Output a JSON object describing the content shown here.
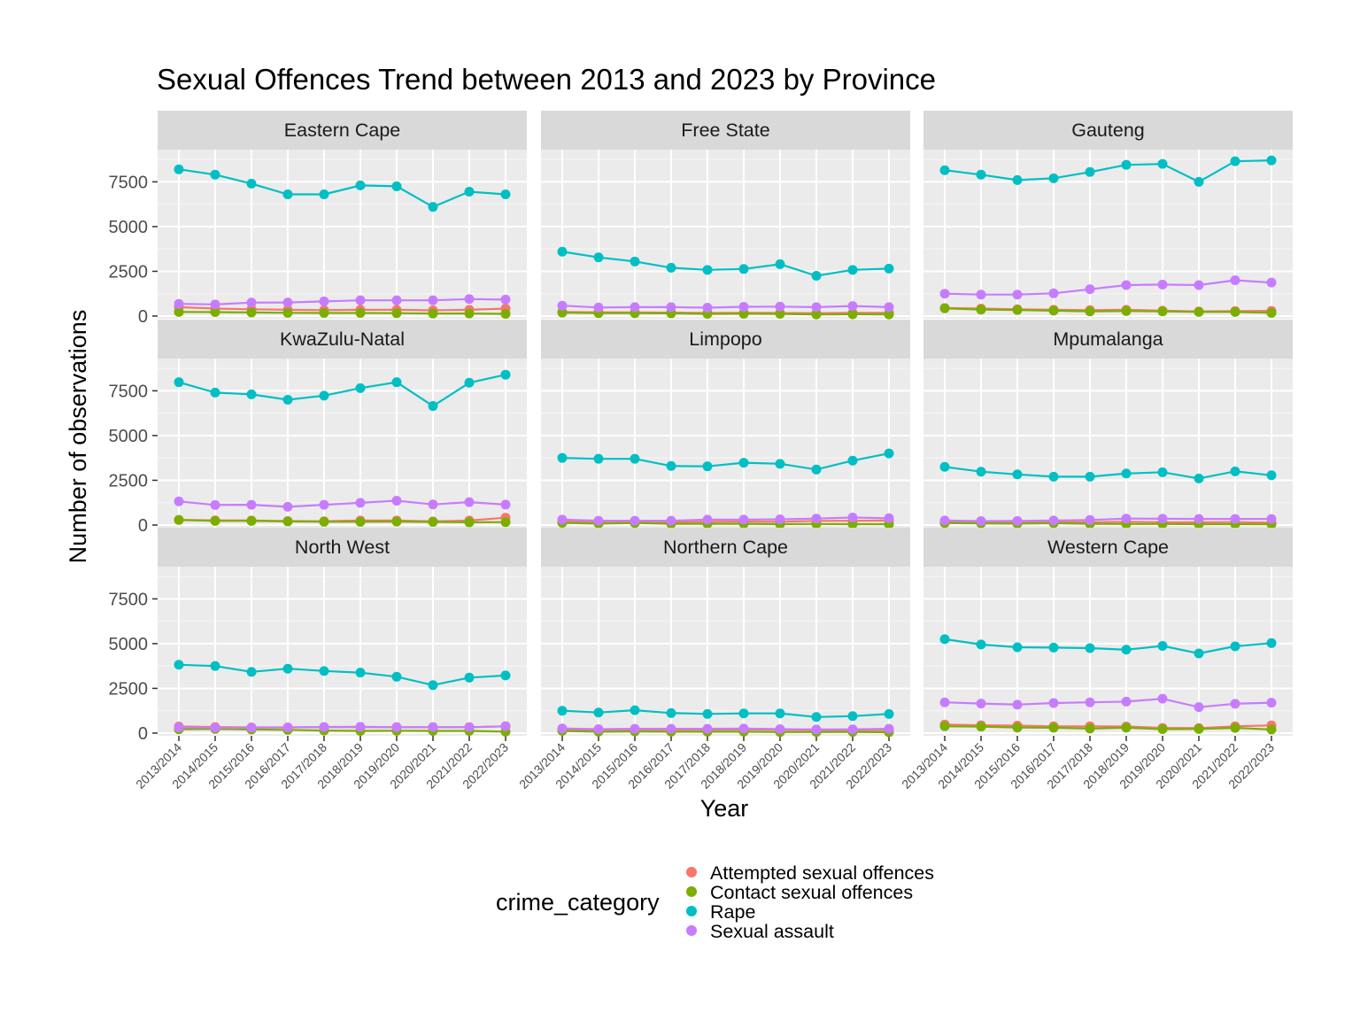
{
  "chart_data": {
    "type": "line",
    "title": "Sexual Offences Trend between 2013 and 2023 by Province",
    "xlabel": "Year",
    "ylabel": "Number of observations",
    "ylim": [
      -150,
      9300
    ],
    "yticks": [
      0,
      2500,
      5000,
      7500
    ],
    "ytick_labels": [
      "0",
      "2500",
      "5000",
      "7500"
    ],
    "grid": true,
    "legend_position": "bottom",
    "legend_title": "crime_category",
    "x": [
      "2013/2014",
      "2014/2015",
      "2015/2016",
      "2016/2017",
      "2017/2018",
      "2018/2019",
      "2019/2020",
      "2020/2021",
      "2021/2022",
      "2022/2023"
    ],
    "series_meta": [
      {
        "name": "Attempted sexual offences",
        "color": "#F8766D"
      },
      {
        "name": "Contact sexual offences",
        "color": "#7CAE00"
      },
      {
        "name": "Rape",
        "color": "#00BFC4"
      },
      {
        "name": "Sexual assault",
        "color": "#C77CFF"
      }
    ],
    "facets": [
      {
        "name": "Eastern Cape",
        "series": [
          {
            "name": "Attempted sexual offences",
            "values": [
              500,
              420,
              380,
              350,
              330,
              350,
              350,
              320,
              350,
              420
            ]
          },
          {
            "name": "Contact sexual offences",
            "values": [
              230,
              220,
              200,
              180,
              170,
              170,
              160,
              140,
              140,
              120
            ]
          },
          {
            "name": "Rape",
            "values": [
              8200,
              7900,
              7400,
              6800,
              6800,
              7300,
              7250,
              6100,
              6950,
              6800
            ]
          },
          {
            "name": "Sexual assault",
            "values": [
              680,
              650,
              750,
              760,
              820,
              880,
              880,
              880,
              950,
              920
            ]
          }
        ]
      },
      {
        "name": "Free State",
        "series": [
          {
            "name": "Attempted sexual offences",
            "values": [
              230,
              210,
              200,
              190,
              170,
              180,
              170,
              160,
              180,
              180
            ]
          },
          {
            "name": "Contact sexual offences",
            "values": [
              190,
              160,
              160,
              150,
              120,
              130,
              120,
              90,
              100,
              90
            ]
          },
          {
            "name": "Rape",
            "values": [
              3600,
              3280,
              3050,
              2700,
              2580,
              2630,
              2900,
              2250,
              2580,
              2650
            ]
          },
          {
            "name": "Sexual assault",
            "values": [
              580,
              480,
              500,
              500,
              470,
              520,
              530,
              500,
              560,
              500
            ]
          }
        ]
      },
      {
        "name": "Gauteng",
        "series": [
          {
            "name": "Attempted sexual offences",
            "values": [
              450,
              420,
              380,
              350,
              330,
              350,
              300,
              260,
              280,
              290
            ]
          },
          {
            "name": "Contact sexual offences",
            "values": [
              430,
              360,
              340,
              300,
              260,
              280,
              260,
              230,
              230,
              180
            ]
          },
          {
            "name": "Rape",
            "values": [
              8150,
              7900,
              7600,
              7700,
              8050,
              8450,
              8500,
              7500,
              8650,
              8700
            ]
          },
          {
            "name": "Sexual assault",
            "values": [
              1250,
              1200,
              1200,
              1270,
              1500,
              1730,
              1760,
              1730,
              2000,
              1870
            ]
          }
        ]
      },
      {
        "name": "KwaZulu-Natal",
        "series": [
          {
            "name": "Attempted sexual offences",
            "values": [
              290,
              260,
              250,
              220,
              210,
              250,
              250,
              200,
              250,
              410
            ]
          },
          {
            "name": "Contact sexual offences",
            "values": [
              280,
              230,
              230,
              200,
              180,
              180,
              190,
              170,
              150,
              160
            ]
          },
          {
            "name": "Rape",
            "values": [
              7980,
              7400,
              7300,
              7000,
              7230,
              7650,
              7980,
              6650,
              7950,
              8400
            ]
          },
          {
            "name": "Sexual assault",
            "values": [
              1320,
              1120,
              1130,
              1020,
              1130,
              1240,
              1360,
              1150,
              1280,
              1140
            ]
          }
        ]
      },
      {
        "name": "Limpopo",
        "series": [
          {
            "name": "Attempted sexual offences",
            "values": [
              200,
              190,
              200,
              170,
              180,
              190,
              180,
              230,
              240,
              250
            ]
          },
          {
            "name": "Contact sexual offences",
            "values": [
              120,
              80,
              110,
              70,
              70,
              70,
              50,
              60,
              50,
              50
            ]
          },
          {
            "name": "Rape",
            "values": [
              3750,
              3700,
              3700,
              3300,
              3280,
              3480,
              3420,
              3100,
              3600,
              4000
            ]
          },
          {
            "name": "Sexual assault",
            "values": [
              300,
              240,
              240,
              240,
              300,
              300,
              320,
              360,
              420,
              380
            ]
          }
        ]
      },
      {
        "name": "Mpumalanga",
        "series": [
          {
            "name": "Attempted sexual offences",
            "values": [
              180,
              170,
              170,
              170,
              150,
              180,
              150,
              150,
              160,
              130
            ]
          },
          {
            "name": "Contact sexual offences",
            "values": [
              110,
              90,
              80,
              100,
              70,
              60,
              60,
              50,
              50,
              50
            ]
          },
          {
            "name": "Rape",
            "values": [
              3250,
              2980,
              2830,
              2700,
              2700,
              2880,
              2950,
              2600,
              3000,
              2780
            ]
          },
          {
            "name": "Sexual assault",
            "values": [
              250,
              220,
              230,
              250,
              280,
              360,
              350,
              340,
              340,
              340
            ]
          }
        ]
      },
      {
        "name": "North West",
        "series": [
          {
            "name": "Attempted sexual offences",
            "values": [
              370,
              340,
              320,
              320,
              330,
              330,
              330,
              330,
              330,
              380
            ]
          },
          {
            "name": "Contact sexual offences",
            "values": [
              210,
              230,
              200,
              180,
              140,
              120,
              130,
              120,
              120,
              80
            ]
          },
          {
            "name": "Rape",
            "values": [
              3820,
              3750,
              3420,
              3600,
              3470,
              3380,
              3150,
              2680,
              3100,
              3220
            ]
          },
          {
            "name": "Sexual assault",
            "values": [
              320,
              300,
              300,
              320,
              340,
              350,
              330,
              330,
              330,
              380
            ]
          }
        ]
      },
      {
        "name": "Northern Cape",
        "series": [
          {
            "name": "Attempted sexual offences",
            "values": [
              200,
              180,
              190,
              190,
              190,
              200,
              180,
              150,
              160,
              170
            ]
          },
          {
            "name": "Contact sexual offences",
            "values": [
              120,
              80,
              90,
              80,
              80,
              80,
              60,
              60,
              70,
              50
            ]
          },
          {
            "name": "Rape",
            "values": [
              1250,
              1150,
              1280,
              1120,
              1070,
              1100,
              1100,
              900,
              950,
              1070
            ]
          },
          {
            "name": "Sexual assault",
            "values": [
              260,
              220,
              240,
              240,
              240,
              250,
              220,
              200,
              210,
              240
            ]
          }
        ]
      },
      {
        "name": "Western Cape",
        "series": [
          {
            "name": "Attempted sexual offences",
            "values": [
              480,
              440,
              420,
              380,
              380,
              370,
              290,
              280,
              380,
              430
            ]
          },
          {
            "name": "Contact sexual offences",
            "values": [
              380,
              360,
              310,
              300,
              250,
              300,
              220,
              230,
              290,
              200
            ]
          },
          {
            "name": "Rape",
            "values": [
              5250,
              4950,
              4800,
              4780,
              4750,
              4660,
              4870,
              4450,
              4850,
              5030
            ]
          },
          {
            "name": "Sexual assault",
            "values": [
              1720,
              1650,
              1590,
              1680,
              1720,
              1760,
              1920,
              1450,
              1640,
              1700
            ]
          }
        ]
      }
    ]
  }
}
